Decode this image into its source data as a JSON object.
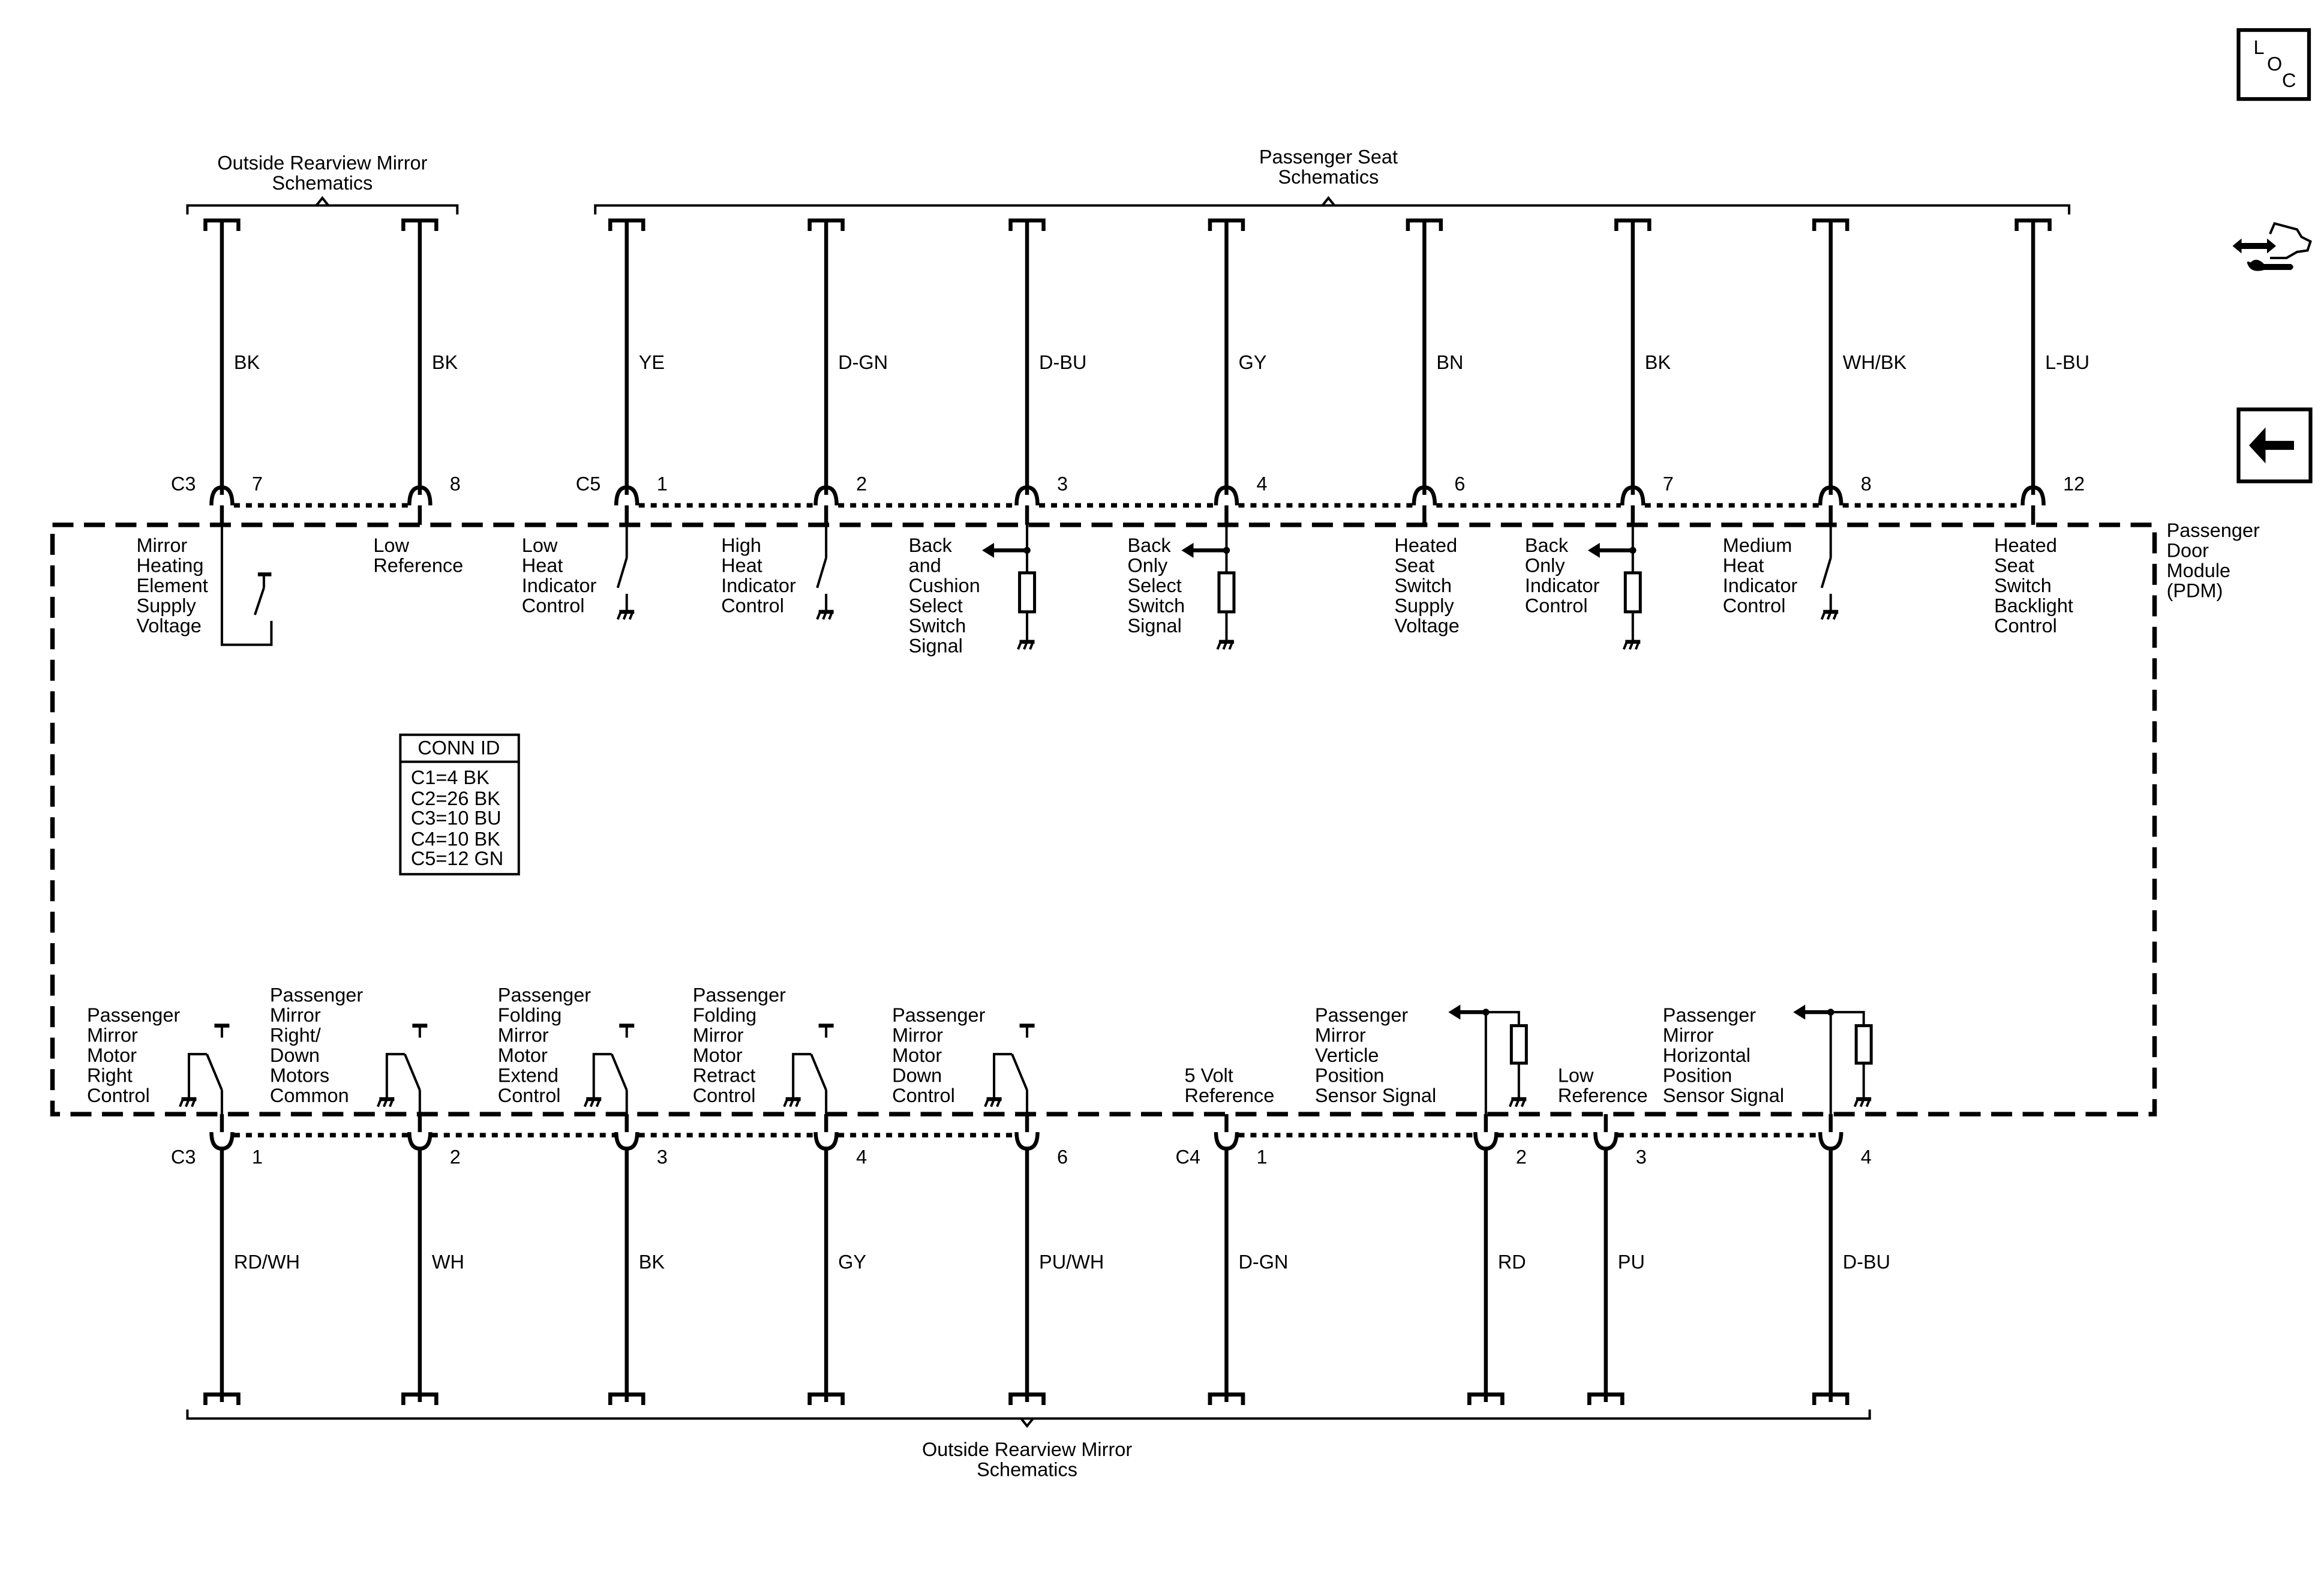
{
  "toolbar": {
    "loc_icon": {
      "name": "loc-icon",
      "letters": [
        "L",
        "O",
        "C"
      ]
    },
    "repair_icon": "hand-wrench-icon",
    "back_icon": "back-arrow-icon"
  },
  "top_groups": [
    {
      "label": [
        "Outside Rearview Mirror",
        "Schematics"
      ]
    },
    {
      "label": [
        "Passenger Seat",
        "Schematics"
      ]
    }
  ],
  "bottom_group": {
    "label": [
      "Outside Rearview Mirror",
      "Schematics"
    ]
  },
  "module": {
    "label": [
      "Passenger",
      "Door",
      "Module",
      "(PDM)"
    ]
  },
  "conn_id": {
    "title": "CONN ID",
    "items": [
      "C1=4 BK",
      "C2=26 BK",
      "C3=10 BU",
      "C4=10 BK",
      "C5=12 GN"
    ]
  },
  "top_circuits": [
    {
      "connector": "C3",
      "pin": "7",
      "color": "BK",
      "label": [
        "Mirror",
        "Heating",
        "Element",
        "Supply",
        "Voltage"
      ],
      "symbol": "heater-switch"
    },
    {
      "connector": "",
      "pin": "8",
      "color": "BK",
      "label": [
        "Low",
        "Reference"
      ],
      "symbol": "none"
    },
    {
      "connector": "C5",
      "pin": "1",
      "color": "YE",
      "label": [
        "Low",
        "Heat",
        "Indicator",
        "Control"
      ],
      "symbol": "switch-ground"
    },
    {
      "connector": "",
      "pin": "2",
      "color": "D-GN",
      "label": [
        "High",
        "Heat",
        "Indicator",
        "Control"
      ],
      "symbol": "switch-ground"
    },
    {
      "connector": "",
      "pin": "3",
      "color": "D-BU",
      "label": [
        "Back",
        "and",
        "Cushion",
        "Select",
        "Switch",
        "Signal"
      ],
      "symbol": "resistor-ground"
    },
    {
      "connector": "",
      "pin": "4",
      "color": "GY",
      "label": [
        "Back",
        "Only",
        "Select",
        "Switch",
        "Signal"
      ],
      "symbol": "resistor-ground"
    },
    {
      "connector": "",
      "pin": "6",
      "color": "BN",
      "label": [
        "Heated",
        "Seat",
        "Switch",
        "Supply",
        "Voltage"
      ],
      "symbol": "none"
    },
    {
      "connector": "",
      "pin": "7",
      "color": "BK",
      "label": [
        "Back",
        "Only",
        "Indicator",
        "Control"
      ],
      "symbol": "resistor-ground"
    },
    {
      "connector": "",
      "pin": "8",
      "color": "WH/BK",
      "label": [
        "Medium",
        "Heat",
        "Indicator",
        "Control"
      ],
      "symbol": "switch-ground"
    },
    {
      "connector": "",
      "pin": "12",
      "color": "L-BU",
      "label": [
        "Heated",
        "Seat",
        "Switch",
        "Backlight",
        "Control"
      ],
      "symbol": "none"
    }
  ],
  "bottom_circuits": [
    {
      "connector": "C3",
      "pin": "1",
      "color": "RD/WH",
      "label": [
        "Passenger",
        "Mirror",
        "Motor",
        "Right",
        "Control"
      ],
      "symbol": "motor-relay"
    },
    {
      "connector": "",
      "pin": "2",
      "color": "WH",
      "label": [
        "Passenger",
        "Mirror",
        "Right/",
        "Down",
        "Motors",
        "Common"
      ],
      "symbol": "motor-relay"
    },
    {
      "connector": "",
      "pin": "3",
      "color": "BK",
      "label": [
        "Passenger",
        "Folding",
        "Mirror",
        "Motor",
        "Extend",
        "Control"
      ],
      "symbol": "motor-relay"
    },
    {
      "connector": "",
      "pin": "4",
      "color": "GY",
      "label": [
        "Passenger",
        "Folding",
        "Mirror",
        "Motor",
        "Retract",
        "Control"
      ],
      "symbol": "motor-relay"
    },
    {
      "connector": "",
      "pin": "6",
      "color": "PU/WH",
      "label": [
        "Passenger",
        "Mirror",
        "Motor",
        "Down",
        "Control"
      ],
      "symbol": "motor-relay"
    },
    {
      "connector": "C4",
      "pin": "1",
      "color": "D-GN",
      "label": [
        "5 Volt",
        "Reference"
      ],
      "symbol": "none"
    },
    {
      "connector": "",
      "pin": "2",
      "color": "RD",
      "label": [
        "Passenger",
        "Mirror",
        "Verticle",
        "Position",
        "Sensor Signal"
      ],
      "symbol": "sensor-resistor"
    },
    {
      "connector": "",
      "pin": "3",
      "color": "PU",
      "label": [
        "Low",
        "Reference"
      ],
      "symbol": "none"
    },
    {
      "connector": "",
      "pin": "4",
      "color": "D-BU",
      "label": [
        "Passenger",
        "Mirror",
        "Horizontal",
        "Position",
        "Sensor Signal"
      ],
      "symbol": "sensor-resistor"
    }
  ]
}
